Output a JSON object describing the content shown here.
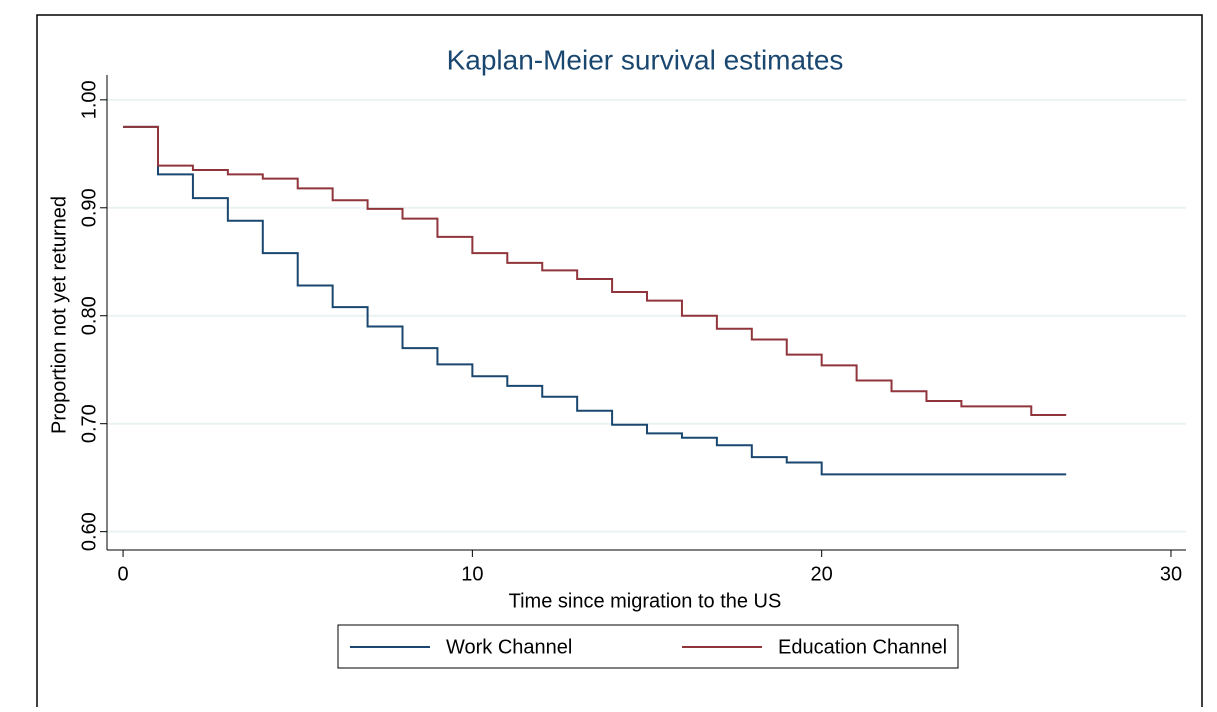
{
  "chart_data": {
    "type": "step",
    "title": "Kaplan-Meier survival estimates",
    "x_label": "Time since migration to the US",
    "y_label": "Proportion not yet returned",
    "x": [
      0,
      1,
      2,
      3,
      4,
      5,
      6,
      7,
      8,
      9,
      10,
      11,
      12,
      13,
      14,
      15,
      16,
      17,
      18,
      19,
      20,
      21,
      22,
      23,
      24,
      25,
      26,
      27
    ],
    "series": [
      {
        "name": "Work Channel",
        "color": "#1a476f",
        "values": [
          0.975,
          0.931,
          0.909,
          0.888,
          0.858,
          0.828,
          0.808,
          0.79,
          0.77,
          0.755,
          0.744,
          0.735,
          0.725,
          0.712,
          0.699,
          0.691,
          0.687,
          0.68,
          0.669,
          0.664,
          0.653,
          0.653,
          0.653,
          0.653,
          0.653,
          0.653,
          0.653,
          0.653
        ]
      },
      {
        "name": "Education Channel",
        "color": "#90353b",
        "values": [
          0.975,
          0.939,
          0.935,
          0.931,
          0.927,
          0.918,
          0.907,
          0.899,
          0.89,
          0.873,
          0.858,
          0.849,
          0.842,
          0.834,
          0.822,
          0.814,
          0.8,
          0.788,
          0.778,
          0.764,
          0.754,
          0.74,
          0.73,
          0.721,
          0.716,
          0.716,
          0.708,
          0.708
        ]
      }
    ],
    "xlim": [
      -0.46,
      30.43
    ],
    "ylim": [
      0.583,
      1.023
    ],
    "xticks": [
      0,
      10,
      20,
      30
    ],
    "yticks": [
      {
        "value": 0.6,
        "label": "0.60"
      },
      {
        "value": 0.7,
        "label": "0.70"
      },
      {
        "value": 0.8,
        "label": "0.80"
      },
      {
        "value": 0.9,
        "label": "0.90"
      },
      {
        "value": 1,
        "label": "1.00"
      }
    ],
    "grid": true
  }
}
